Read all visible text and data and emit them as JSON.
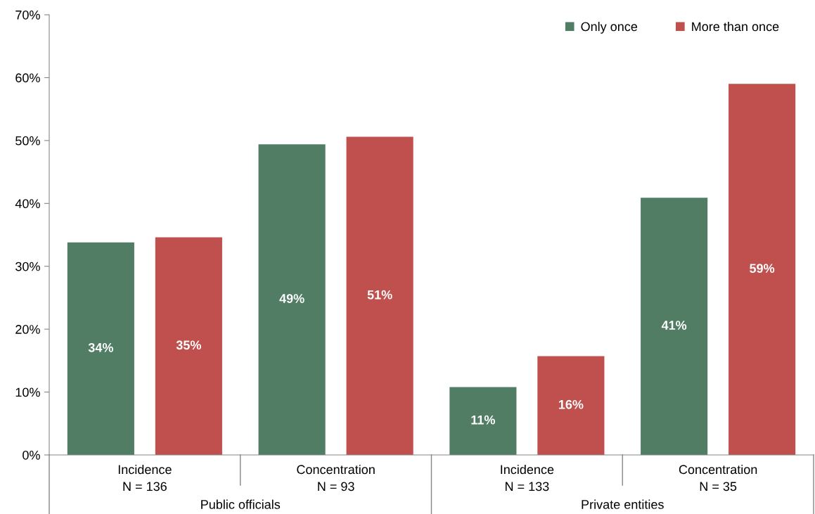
{
  "chart_data": {
    "type": "bar",
    "categories": [
      "Incidence\nN = 136",
      "Concentration\nN = 93",
      "Incidence\nN = 133",
      "Concentration\nN = 35"
    ],
    "series": [
      {
        "name": "Only once",
        "color": "#507d63",
        "values": [
          33.8,
          49.4,
          10.8,
          40.9
        ],
        "value_labels": [
          "34%",
          "49%",
          "11%",
          "41%"
        ]
      },
      {
        "name": "More than once",
        "color": "#c0504d",
        "values": [
          34.6,
          50.6,
          15.7,
          59.0
        ],
        "value_labels": [
          "35%",
          "51%",
          "16%",
          "59%"
        ]
      }
    ],
    "ylim": [
      0,
      70
    ],
    "yticks": [
      {
        "value": 0,
        "label": "0%"
      },
      {
        "value": 10,
        "label": "10%"
      },
      {
        "value": 20,
        "label": "20%"
      },
      {
        "value": 30,
        "label": "30%"
      },
      {
        "value": 40,
        "label": "40%"
      },
      {
        "value": 50,
        "label": "50%"
      },
      {
        "value": 60,
        "label": "60%"
      },
      {
        "value": 70,
        "label": "70%"
      }
    ],
    "annotations": [
      "Public officials",
      "Private entities"
    ],
    "legend": "top right",
    "grid": false
  }
}
